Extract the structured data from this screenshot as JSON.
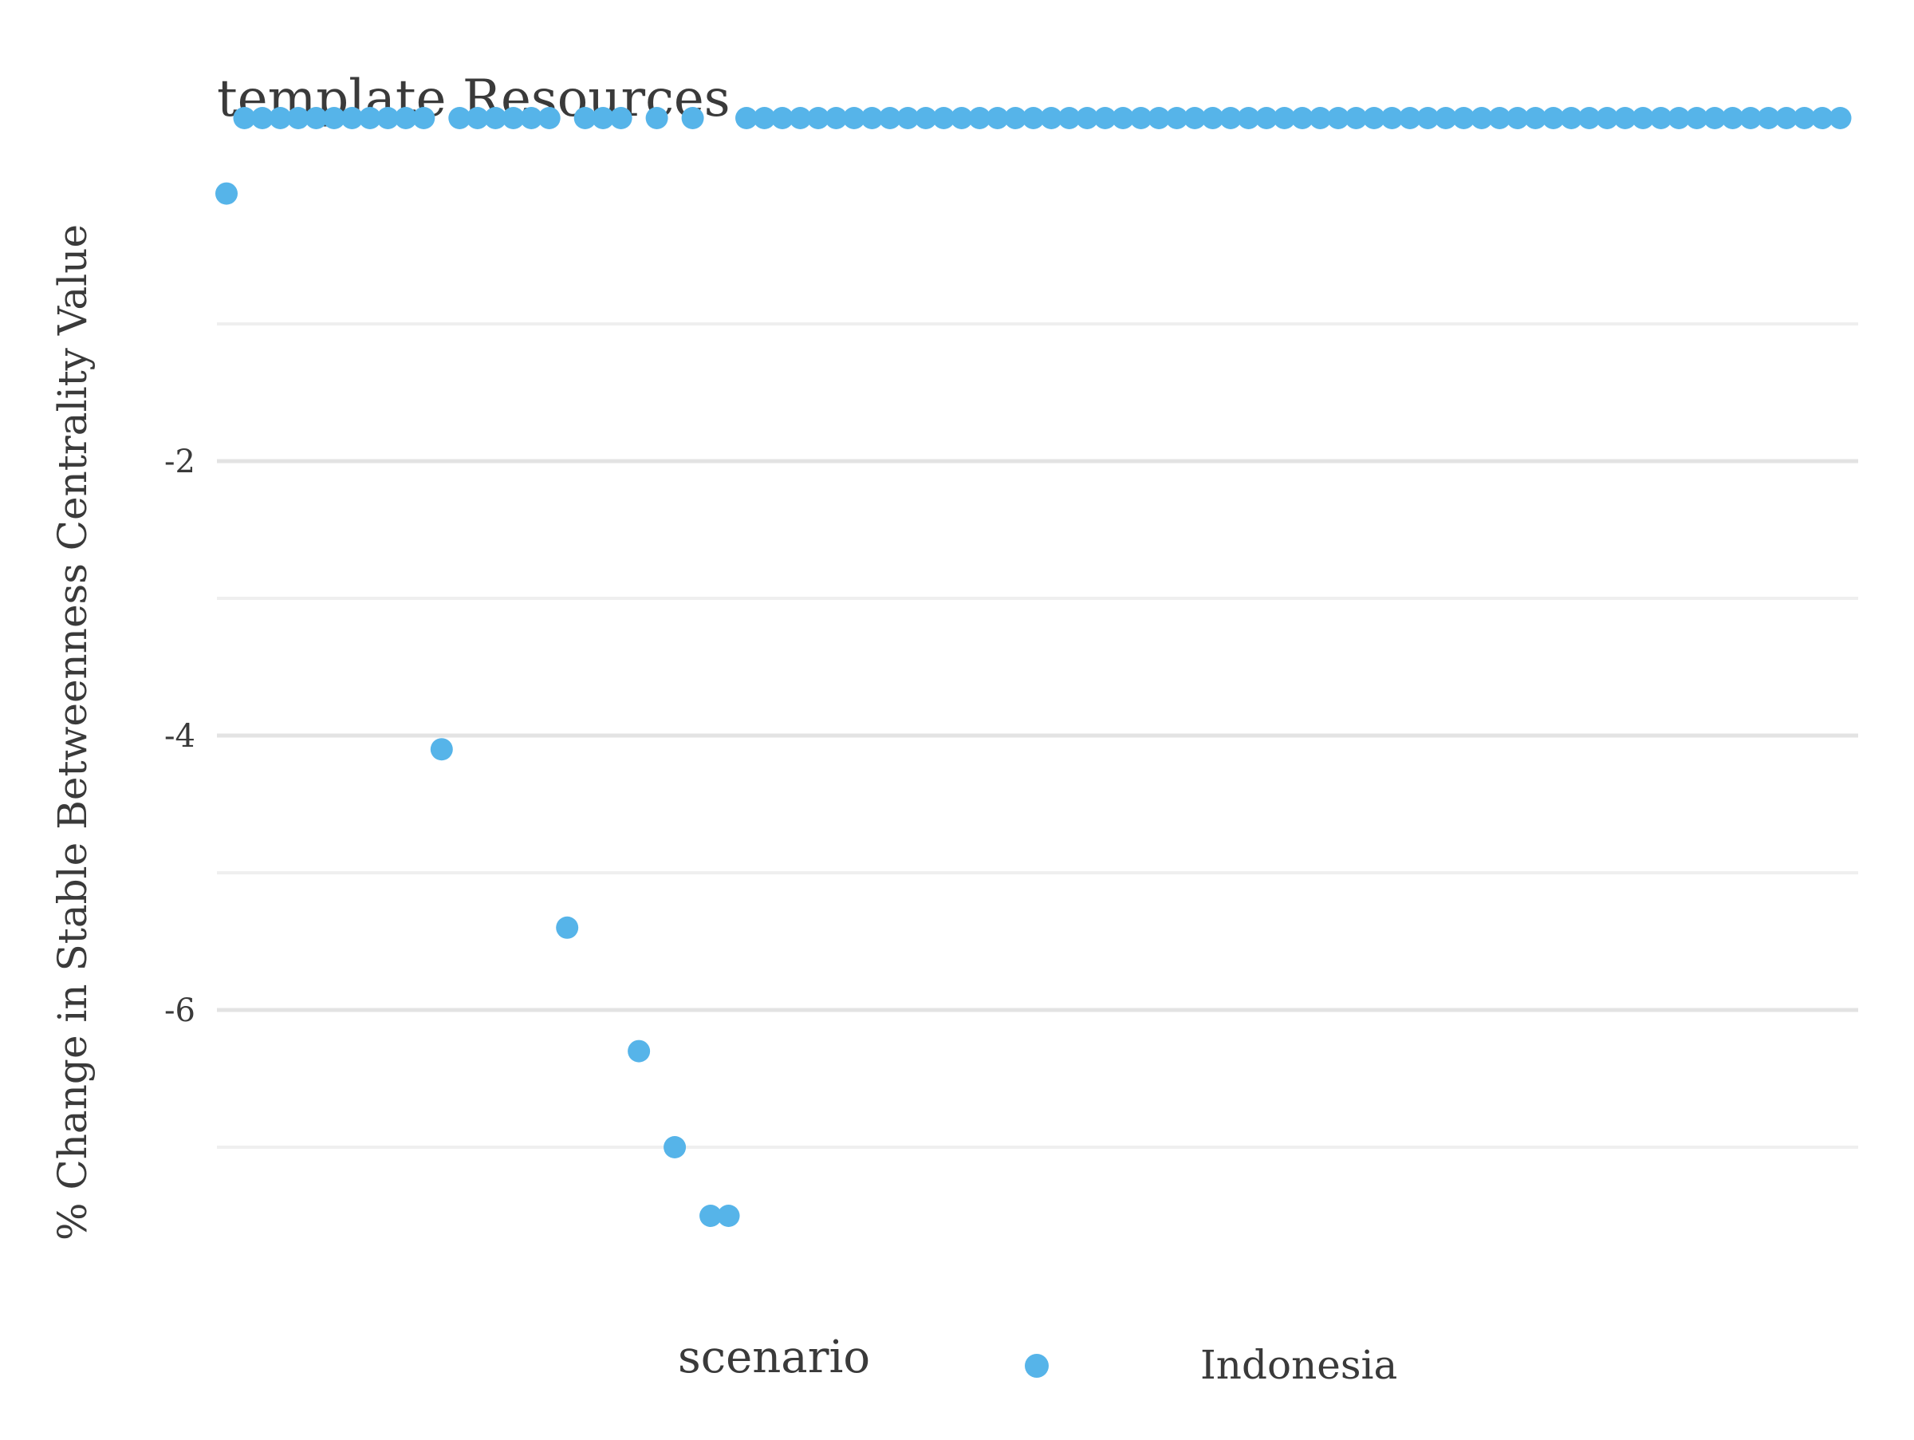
{
  "chart_data": {
    "type": "scatter",
    "title": "template Resources",
    "xlabel": "",
    "ylabel": "% Change in Stable Betweenness Centrality Value",
    "ylim": [
      -7.7,
      0.45
    ],
    "y_ticks": [
      -2,
      -4,
      -6
    ],
    "grid": "horizontal",
    "legend": {
      "title": "scenario",
      "position": "bottom",
      "entries": [
        {
          "name": "Indonesia",
          "color": "#56b4e9"
        }
      ]
    },
    "series": [
      {
        "name": "Indonesia",
        "color": "#56b4e9",
        "points": [
          {
            "x": 1,
            "y": -0.05
          },
          {
            "x": 2,
            "y": 0.5
          },
          {
            "x": 3,
            "y": 0.5
          },
          {
            "x": 4,
            "y": 0.5
          },
          {
            "x": 5,
            "y": 0.5
          },
          {
            "x": 6,
            "y": 0.5
          },
          {
            "x": 7,
            "y": 0.5
          },
          {
            "x": 8,
            "y": 0.5
          },
          {
            "x": 9,
            "y": 0.5
          },
          {
            "x": 10,
            "y": 0.5
          },
          {
            "x": 11,
            "y": 0.5
          },
          {
            "x": 12,
            "y": 0.5
          },
          {
            "x": 13,
            "y": -4.1
          },
          {
            "x": 14,
            "y": 0.5
          },
          {
            "x": 15,
            "y": 0.5
          },
          {
            "x": 16,
            "y": 0.5
          },
          {
            "x": 17,
            "y": 0.5
          },
          {
            "x": 18,
            "y": 0.5
          },
          {
            "x": 19,
            "y": 0.5
          },
          {
            "x": 20,
            "y": -5.4
          },
          {
            "x": 21,
            "y": 0.5
          },
          {
            "x": 22,
            "y": 0.5
          },
          {
            "x": 23,
            "y": 0.5
          },
          {
            "x": 24,
            "y": -6.3
          },
          {
            "x": 25,
            "y": 0.5
          },
          {
            "x": 26,
            "y": -7.0
          },
          {
            "x": 27,
            "y": 0.5
          },
          {
            "x": 28,
            "y": -7.5
          },
          {
            "x": 29,
            "y": -7.5
          },
          {
            "x": 30,
            "y": 0.5
          },
          {
            "x": 31,
            "y": 0.5
          },
          {
            "x": 32,
            "y": 0.5
          },
          {
            "x": 33,
            "y": 0.5
          },
          {
            "x": 34,
            "y": 0.5
          },
          {
            "x": 35,
            "y": 0.5
          },
          {
            "x": 36,
            "y": 0.5
          },
          {
            "x": 37,
            "y": 0.5
          },
          {
            "x": 38,
            "y": 0.5
          },
          {
            "x": 39,
            "y": 0.5
          },
          {
            "x": 40,
            "y": 0.5
          },
          {
            "x": 41,
            "y": 0.5
          },
          {
            "x": 42,
            "y": 0.5
          },
          {
            "x": 43,
            "y": 0.5
          },
          {
            "x": 44,
            "y": 0.5
          },
          {
            "x": 45,
            "y": 0.5
          },
          {
            "x": 46,
            "y": 0.5
          },
          {
            "x": 47,
            "y": 0.5
          },
          {
            "x": 48,
            "y": 0.5
          },
          {
            "x": 49,
            "y": 0.5
          },
          {
            "x": 50,
            "y": 0.5
          },
          {
            "x": 51,
            "y": 0.5
          },
          {
            "x": 52,
            "y": 0.5
          },
          {
            "x": 53,
            "y": 0.5
          },
          {
            "x": 54,
            "y": 0.5
          },
          {
            "x": 55,
            "y": 0.5
          },
          {
            "x": 56,
            "y": 0.5
          },
          {
            "x": 57,
            "y": 0.5
          },
          {
            "x": 58,
            "y": 0.5
          },
          {
            "x": 59,
            "y": 0.5
          },
          {
            "x": 60,
            "y": 0.5
          },
          {
            "x": 61,
            "y": 0.5
          },
          {
            "x": 62,
            "y": 0.5
          },
          {
            "x": 63,
            "y": 0.5
          },
          {
            "x": 64,
            "y": 0.5
          },
          {
            "x": 65,
            "y": 0.5
          },
          {
            "x": 66,
            "y": 0.5
          },
          {
            "x": 67,
            "y": 0.5
          },
          {
            "x": 68,
            "y": 0.5
          },
          {
            "x": 69,
            "y": 0.5
          },
          {
            "x": 70,
            "y": 0.5
          },
          {
            "x": 71,
            "y": 0.5
          },
          {
            "x": 72,
            "y": 0.5
          },
          {
            "x": 73,
            "y": 0.5
          },
          {
            "x": 74,
            "y": 0.5
          },
          {
            "x": 75,
            "y": 0.5
          },
          {
            "x": 76,
            "y": 0.5
          },
          {
            "x": 77,
            "y": 0.5
          },
          {
            "x": 78,
            "y": 0.5
          },
          {
            "x": 79,
            "y": 0.5
          },
          {
            "x": 80,
            "y": 0.5
          },
          {
            "x": 81,
            "y": 0.5
          },
          {
            "x": 82,
            "y": 0.5
          },
          {
            "x": 83,
            "y": 0.5
          },
          {
            "x": 84,
            "y": 0.5
          },
          {
            "x": 85,
            "y": 0.5
          },
          {
            "x": 86,
            "y": 0.5
          },
          {
            "x": 87,
            "y": 0.5
          },
          {
            "x": 88,
            "y": 0.5
          },
          {
            "x": 89,
            "y": 0.5
          },
          {
            "x": 90,
            "y": 0.5
          },
          {
            "x": 91,
            "y": 0.5
          }
        ]
      }
    ]
  }
}
